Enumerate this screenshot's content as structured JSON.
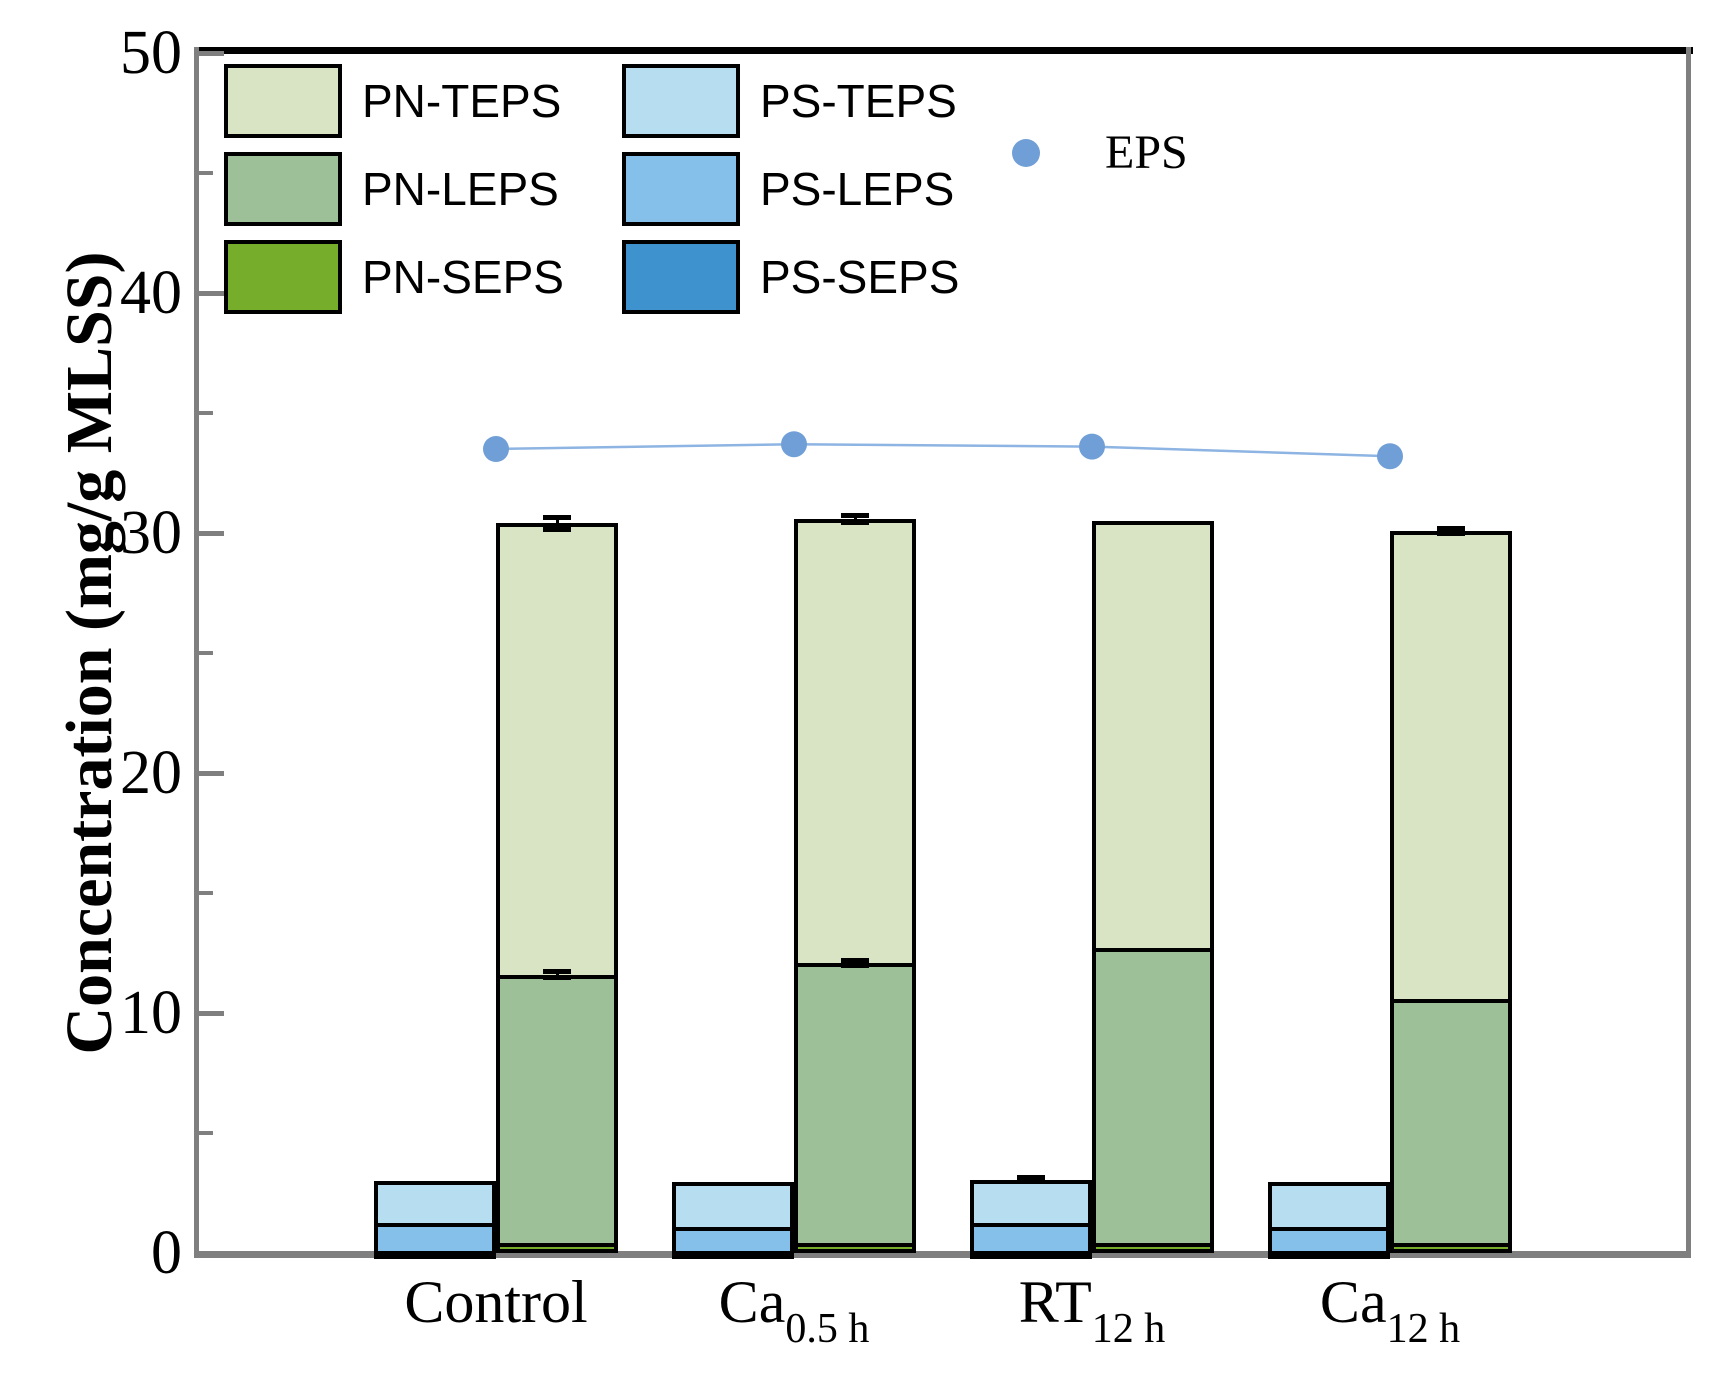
{
  "ylabel": "Concentration (mg/g MLSS)",
  "legend": {
    "pn_entries": [
      {
        "label": "PN-TEPS",
        "color": "#d8e4c4"
      },
      {
        "label": "PN-LEPS",
        "color": "#9dc098"
      },
      {
        "label": "PN-SEPS",
        "color": "#76ad2a"
      }
    ],
    "ps_entries": [
      {
        "label": "PS-TEPS",
        "color": "#b7ddf0"
      },
      {
        "label": "PS-LEPS",
        "color": "#85c0ea"
      },
      {
        "label": "PS-SEPS",
        "color": "#3e92ce"
      }
    ],
    "eps_label": "EPS",
    "eps_marker_color": "#6f9fd6"
  },
  "chart_data": {
    "type": "bar",
    "stacked": true,
    "title": "",
    "xlabel": "",
    "ylabel": "Concentration (mg/g MLSS)",
    "ylim": [
      0,
      50
    ],
    "y_major_ticks": [
      0,
      10,
      20,
      30,
      40,
      50
    ],
    "y_minor_ticks": [
      5,
      15,
      25,
      35,
      45
    ],
    "grid": false,
    "legend_position": "upper-left-inside",
    "categories": [
      {
        "text": "Control",
        "subscript": ""
      },
      {
        "text": "Ca",
        "subscript": "0.5 h"
      },
      {
        "text": "RT",
        "subscript": "12 h"
      },
      {
        "text": "Ca",
        "subscript": "12 h"
      }
    ],
    "bar_stacks": [
      {
        "id": "ps",
        "position": "left",
        "stack_order_bottom_to_top": [
          "PS-SEPS",
          "PS-LEPS",
          "PS-TEPS"
        ],
        "segments": [
          {
            "name": "PS-SEPS",
            "color": "#3e92ce",
            "values": [
              0.1,
              0.1,
              0.1,
              0.1
            ]
          },
          {
            "name": "PS-LEPS",
            "color": "#85c0ea",
            "values": [
              1.15,
              1.0,
              1.15,
              1.0
            ]
          },
          {
            "name": "PS-TEPS",
            "color": "#b7ddf0",
            "values": [
              1.75,
              1.85,
              1.8,
              1.85
            ]
          }
        ],
        "totals": [
          3.0,
          2.95,
          3.05,
          2.95
        ]
      },
      {
        "id": "pn",
        "position": "right",
        "stack_order_bottom_to_top": [
          "PN-SEPS",
          "PN-LEPS",
          "PN-TEPS"
        ],
        "segments": [
          {
            "name": "PN-SEPS",
            "color": "#76ad2a",
            "values": [
              0.4,
              0.4,
              0.4,
              0.4
            ]
          },
          {
            "name": "PN-LEPS",
            "color": "#9dc098",
            "values": [
              11.2,
              11.7,
              12.3,
              10.2
            ]
          },
          {
            "name": "PN-TEPS",
            "color": "#d8e4c4",
            "values": [
              18.8,
              18.5,
              17.8,
              19.5
            ]
          }
        ],
        "totals": [
          30.4,
          30.6,
          30.5,
          30.1
        ]
      }
    ],
    "line_series": {
      "name": "EPS",
      "values": [
        33.5,
        33.7,
        33.6,
        33.2
      ],
      "marker_color": "#6f9fd6",
      "line_color": "#8db4e2"
    },
    "error_bars": {
      "pn_total": [
        0.25,
        0.15,
        0,
        0.1
      ],
      "pn_leps_boundary": [
        0.12,
        0.1,
        0,
        0
      ],
      "ps_total": [
        0,
        0,
        0.08,
        0
      ]
    },
    "axis_colors": {
      "frame_top": "#000000",
      "frame_left": "#7f7f7f",
      "frame_bottom": "#7f7f7f",
      "frame_right": "#7f7f7f"
    }
  }
}
